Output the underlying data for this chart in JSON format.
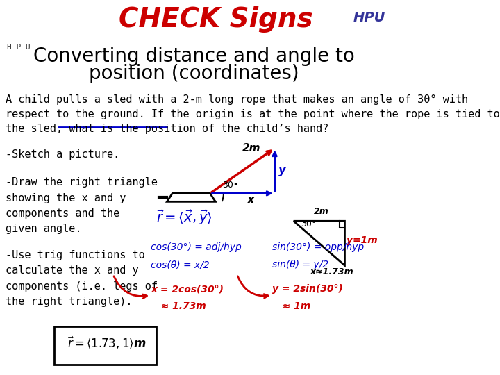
{
  "title_line1": "Converting distance and angle to",
  "title_line2": "position (coordinates)",
  "title_fontsize": 20,
  "title_color": "#000000",
  "header_check_signs": "CHECK Signs",
  "header_color": "#cc0000",
  "body_text": "A child pulls a sled with a 2-m long rope that makes an angle of 30° with\nrespect to the ground. If the origin is at the point where the rope is tied to\nthe sled, what is the position of the child’s hand?",
  "body_fontsize": 11,
  "bullet1": "-Sketch a picture.",
  "bullet2": "-Draw the right triangle\nshowing the x and y\ncomponents and the\ngiven angle.",
  "bullet3": "-Use trig functions to\ncalculate the x and y\ncomponents (i.e. legs of\nthe right triangle).",
  "bullet_fontsize": 11,
  "bg_color": "#ffffff",
  "blue_color": "#0000cc",
  "red_color": "#cc0000",
  "black_color": "#000000"
}
